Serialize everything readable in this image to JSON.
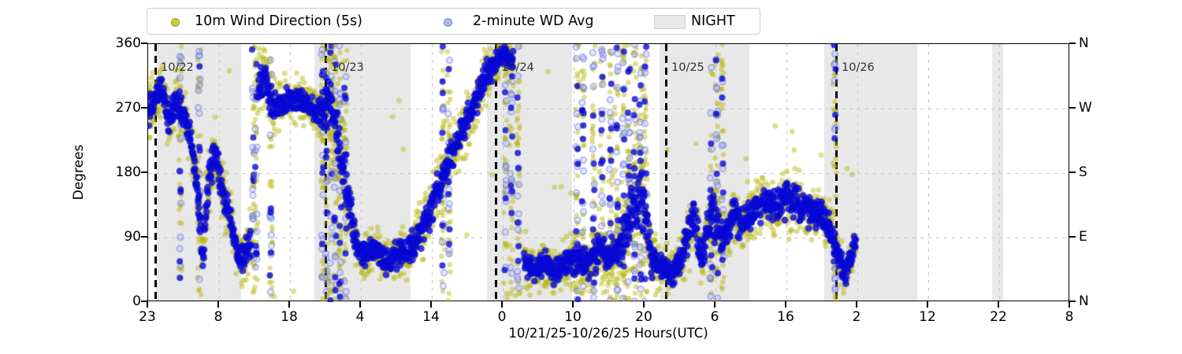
{
  "legend": {
    "items": [
      {
        "label": "10m Wind Direction (5s)",
        "marker": "yellow-dot",
        "color": "#c9cd3a",
        "edge": "#9a9e20"
      },
      {
        "label": "2-minute WD Avg",
        "marker": "lightblue-dot",
        "color": "#aab4f2",
        "edge": "#7b89dd"
      },
      {
        "label": "NIGHT",
        "marker": "gray-patch",
        "color": "#e8e8e8",
        "edge": "#d0d0d0"
      }
    ]
  },
  "axes": {
    "ylabel": "Degrees",
    "xlabel": "10/21/25-10/26/25  Hours(UTC)",
    "ylim": [
      0,
      360
    ],
    "yticks": [
      "0",
      "90",
      "180",
      "270",
      "360"
    ],
    "right_labels_top_to_bottom": [
      "N",
      "W",
      "S",
      "E",
      "N"
    ],
    "xtick_labels": [
      "23",
      "8",
      "18",
      "4",
      "14",
      "0",
      "10",
      "20",
      "6",
      "16",
      "2",
      "12",
      "22",
      "8"
    ],
    "xtick_spacing_hours": 10,
    "total_hours": 130,
    "grid": "dashed"
  },
  "chart_data": {
    "type": "scatter",
    "title": "",
    "xlabel": "10/21/25-10/26/25  Hours(UTC)",
    "ylabel": "Degrees",
    "ylim": [
      0,
      360
    ],
    "x_axis_start": "10/21 23:00 UTC",
    "series": [
      {
        "name": "10m Wind Direction (5s)",
        "color": "rgba(180,180,8,0.45)",
        "radius": 3.4,
        "per_hour": 26,
        "spread_factor": 0.95
      },
      {
        "name": "2-minute WD Avg",
        "color": "rgba(8,8,214,0.8)",
        "radius": 4.3,
        "per_hour": 20,
        "spread_factor": 0.5
      }
    ],
    "trend": [
      [
        0,
        270,
        70
      ],
      [
        1,
        280,
        45
      ],
      [
        2,
        300,
        45
      ],
      [
        3,
        250,
        50
      ],
      [
        4,
        280,
        45
      ],
      [
        5,
        260,
        40
      ],
      [
        6,
        235,
        45
      ],
      [
        7,
        150,
        75
      ],
      [
        7.7,
        60,
        50
      ],
      [
        8.5,
        170,
        60
      ],
      [
        9.5,
        215,
        50
      ],
      [
        10.5,
        150,
        60
      ],
      [
        11.5,
        120,
        50
      ],
      [
        12.5,
        70,
        40
      ],
      [
        13.5,
        60,
        45
      ],
      [
        14.5,
        90,
        60
      ],
      [
        15.5,
        300,
        70
      ],
      [
        16.5,
        320,
        50
      ],
      [
        17.5,
        270,
        60
      ],
      [
        19,
        280,
        40
      ],
      [
        21,
        285,
        35
      ],
      [
        23,
        270,
        35
      ],
      [
        24.5,
        265,
        60
      ],
      [
        25.5,
        280,
        90
      ],
      [
        26.5,
        250,
        90
      ],
      [
        27.5,
        180,
        80
      ],
      [
        29,
        90,
        50
      ],
      [
        30.5,
        65,
        35
      ],
      [
        32,
        75,
        35
      ],
      [
        33.5,
        55,
        35
      ],
      [
        35,
        65,
        35
      ],
      [
        36.5,
        70,
        40
      ],
      [
        38,
        90,
        50
      ],
      [
        39.5,
        120,
        50
      ],
      [
        41,
        160,
        55
      ],
      [
        42.5,
        200,
        55
      ],
      [
        44,
        235,
        55
      ],
      [
        45.5,
        260,
        50
      ],
      [
        47,
        300,
        50
      ],
      [
        48.5,
        330,
        40
      ],
      [
        50,
        345,
        28
      ],
      [
        51.5,
        340,
        40
      ],
      [
        53,
        60,
        50
      ],
      [
        54.5,
        45,
        35
      ],
      [
        56,
        55,
        40
      ],
      [
        57.5,
        40,
        35
      ],
      [
        59,
        55,
        40
      ],
      [
        60.5,
        60,
        45
      ],
      [
        62,
        55,
        50
      ],
      [
        63.5,
        70,
        60
      ],
      [
        65,
        60,
        55
      ],
      [
        66.5,
        80,
        70
      ],
      [
        68,
        120,
        90
      ],
      [
        69.5,
        160,
        100
      ],
      [
        71,
        60,
        60
      ],
      [
        72.5,
        45,
        40
      ],
      [
        74,
        40,
        35
      ],
      [
        75.5,
        70,
        50
      ],
      [
        77,
        120,
        60
      ],
      [
        78,
        60,
        40
      ],
      [
        79.5,
        130,
        70
      ],
      [
        81,
        80,
        50
      ],
      [
        82.5,
        120,
        50
      ],
      [
        84,
        110,
        45
      ],
      [
        85.5,
        130,
        50
      ],
      [
        87,
        140,
        50
      ],
      [
        88.5,
        130,
        45
      ],
      [
        90,
        145,
        55
      ],
      [
        91.5,
        135,
        50
      ],
      [
        93,
        130,
        50
      ],
      [
        94.5,
        125,
        45
      ],
      [
        96,
        110,
        45
      ],
      [
        97.5,
        60,
        45
      ],
      [
        98.5,
        40,
        40
      ],
      [
        99.8,
        85,
        30
      ]
    ],
    "gaps": [
      [
        14.5,
        15.5
      ],
      [
        51.5,
        53
      ]
    ],
    "streaks": [
      4.5,
      7.2,
      14.8,
      15.2,
      17.3,
      24.6,
      25.2,
      25.8,
      26.4,
      27.1,
      27.8,
      41.6,
      42.4,
      50.4,
      51.2,
      52.2,
      60.5,
      61.3,
      62.8,
      64.0,
      65.2,
      66.1,
      67.0,
      67.8,
      68.6,
      69.4,
      70.1,
      79.4,
      80.2,
      81.0,
      96.8
    ],
    "outliers": [
      [
        91.1,
        212
      ],
      [
        84.3,
        200
      ],
      [
        20.5,
        15
      ],
      [
        17.8,
        8
      ],
      [
        48.5,
        178
      ],
      [
        94.9,
        205
      ],
      [
        99.3,
        178
      ],
      [
        57.3,
        160
      ],
      [
        50.6,
        6
      ],
      [
        51.1,
        12
      ],
      [
        51.8,
        9
      ],
      [
        52.4,
        14
      ]
    ],
    "night_bands": [
      [
        1.1,
        13.1
      ],
      [
        23.4,
        37.0
      ],
      [
        47.8,
        59.8
      ],
      [
        72.1,
        84.8
      ],
      [
        95.3,
        108.4
      ],
      [
        119.0,
        120.6
      ]
    ],
    "night_label": "NIGHT",
    "day_lines": [
      {
        "t": 1,
        "label": "10/22"
      },
      {
        "t": 25,
        "label": "10/23"
      },
      {
        "t": 49,
        "label": "10/24"
      },
      {
        "t": 73,
        "label": "10/25"
      },
      {
        "t": 97,
        "label": "10/26"
      }
    ],
    "streak_circle_color": "rgba(150,160,245,0.25)",
    "streak_circle_edge": "rgba(100,112,230,0.55)"
  }
}
